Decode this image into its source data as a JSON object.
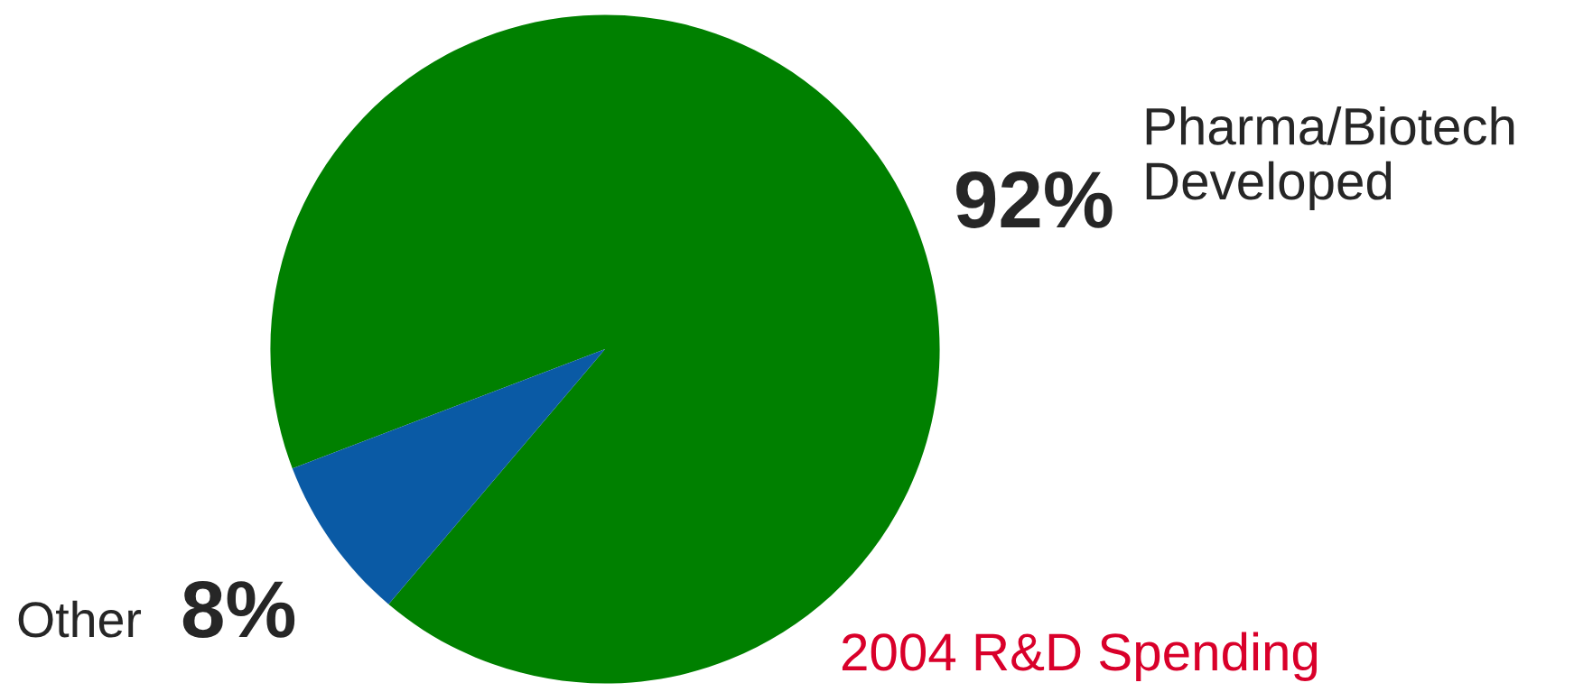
{
  "chart_data": {
    "type": "pie",
    "title": "2004 R&D Spending",
    "categories": [
      "Pharma/Biotech\nDeveloped",
      "Other"
    ],
    "values": [
      92,
      8
    ],
    "colors": [
      "#008000",
      "#0a5aa5"
    ],
    "value_labels": [
      "92%",
      "8%"
    ]
  }
}
